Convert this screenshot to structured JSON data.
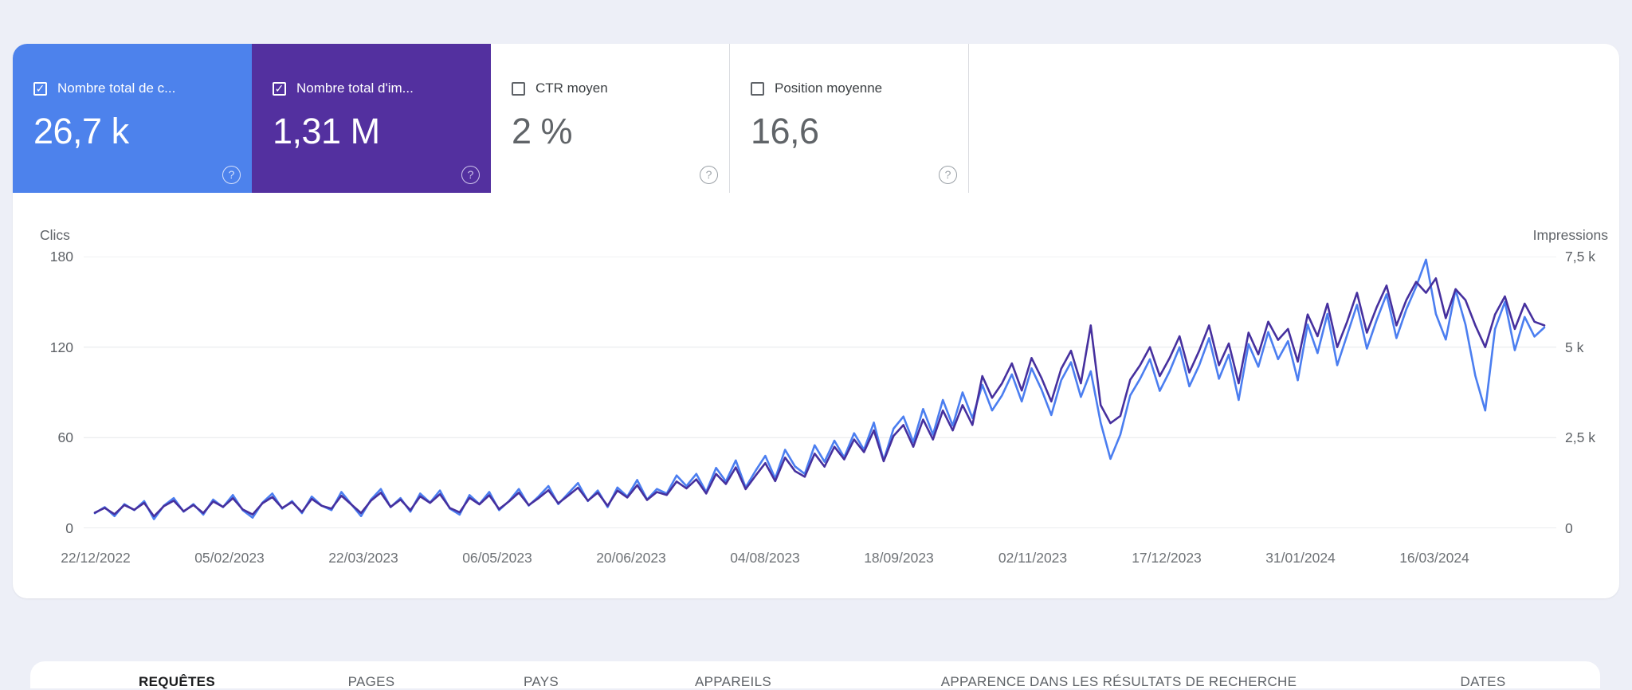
{
  "icons": {
    "help": "?",
    "check": "✓"
  },
  "colors": {
    "page_bg": "#edeff7",
    "clicks_accent": "#4d82ec",
    "impressions_accent": "#53309f",
    "clicks_line": "#4b7ef0",
    "impressions_line": "#46309e",
    "grid": "#e8eaed"
  },
  "cards": [
    {
      "label": "Nombre total de c...",
      "value": "26,7 k",
      "checked": true,
      "bg": "#4d82ec",
      "label_color": "#ffffff",
      "value_color": "#ffffff",
      "cb_color": "#ffffff",
      "help_color": "#d8e2fb"
    },
    {
      "label": "Nombre total d'im...",
      "value": "1,31 M",
      "checked": true,
      "bg": "#53309f",
      "label_color": "#ffffff",
      "value_color": "#ffffff",
      "cb_color": "#ffffff",
      "help_color": "#cfc5ec"
    },
    {
      "label": "CTR moyen",
      "value": "2 %",
      "checked": false,
      "bg": "#ffffff",
      "label_color": "#3c4043",
      "value_color": "#606468",
      "cb_color": "#5f6368",
      "help_color": "#9aa0a6"
    },
    {
      "label": "Position moyenne",
      "value": "16,6",
      "checked": false,
      "bg": "#ffffff",
      "label_color": "#3c4043",
      "value_color": "#606468",
      "cb_color": "#5f6368",
      "help_color": "#9aa0a6"
    }
  ],
  "chart_data": {
    "type": "line",
    "left_axis": {
      "title": "Clics",
      "ticks": [
        "180",
        "120",
        "60",
        "0"
      ],
      "max": 180
    },
    "right_axis": {
      "title": "Impressions",
      "ticks": [
        "7,5 k",
        "5 k",
        "2,5 k",
        "0"
      ],
      "max": 7500
    },
    "x_ticks": [
      "22/12/2022",
      "05/02/2023",
      "22/03/2023",
      "06/05/2023",
      "20/06/2023",
      "04/08/2023",
      "18/09/2023",
      "02/11/2023",
      "17/12/2023",
      "31/01/2024",
      "16/03/2024"
    ],
    "series": [
      {
        "name": "Clics",
        "axis": "left",
        "color": "#4b7ef0",
        "values": [
          10,
          14,
          8,
          16,
          12,
          18,
          6,
          15,
          20,
          11,
          16,
          9,
          19,
          14,
          22,
          12,
          7,
          17,
          23,
          13,
          18,
          10,
          21,
          15,
          12,
          24,
          16,
          8,
          19,
          26,
          14,
          20,
          11,
          23,
          17,
          25,
          13,
          9,
          22,
          16,
          24,
          12,
          18,
          26,
          15,
          21,
          28,
          16,
          23,
          30,
          18,
          25,
          14,
          27,
          21,
          32,
          19,
          26,
          23,
          35,
          28,
          36,
          24,
          40,
          31,
          45,
          27,
          38,
          48,
          33,
          52,
          41,
          36,
          55,
          44,
          58,
          47,
          63,
          52,
          70,
          45,
          66,
          74,
          57,
          79,
          62,
          85,
          68,
          90,
          73,
          95,
          78,
          88,
          102,
          84,
          106,
          92,
          75,
          98,
          110,
          87,
          104,
          70,
          46,
          62,
          88,
          99,
          112,
          91,
          104,
          120,
          94,
          108,
          126,
          99,
          115,
          85,
          122,
          107,
          130,
          112,
          124,
          98,
          135,
          116,
          142,
          108,
          128,
          148,
          119,
          138,
          155,
          126,
          145,
          160,
          178,
          142,
          125,
          158,
          135,
          101,
          78,
          132,
          150,
          118,
          140,
          127,
          133
        ]
      },
      {
        "name": "Impressions",
        "axis": "right",
        "color": "#46309e",
        "values": [
          430,
          560,
          390,
          640,
          510,
          700,
          330,
          610,
          760,
          470,
          640,
          420,
          740,
          590,
          830,
          520,
          380,
          690,
          860,
          560,
          720,
          450,
          810,
          620,
          540,
          900,
          660,
          420,
          760,
          980,
          590,
          790,
          500,
          880,
          700,
          940,
          560,
          440,
          840,
          660,
          910,
          530,
          740,
          980,
          640,
          830,
          1050,
          690,
          900,
          1120,
          760,
          980,
          620,
          1040,
          850,
          1190,
          780,
          1000,
          920,
          1290,
          1100,
          1350,
          960,
          1500,
          1220,
          1680,
          1080,
          1450,
          1800,
          1300,
          1950,
          1580,
          1420,
          2060,
          1700,
          2250,
          1900,
          2450,
          2100,
          2700,
          1850,
          2550,
          2850,
          2250,
          3000,
          2450,
          3250,
          2700,
          3400,
          2850,
          4200,
          3600,
          4000,
          4550,
          3800,
          4700,
          4150,
          3500,
          4400,
          4900,
          4000,
          5600,
          3400,
          2900,
          3100,
          4100,
          4500,
          5000,
          4200,
          4700,
          5300,
          4300,
          4900,
          5600,
          4500,
          5100,
          4000,
          5400,
          4800,
          5700,
          5200,
          5500,
          4600,
          5900,
          5300,
          6200,
          5000,
          5700,
          6500,
          5400,
          6100,
          6700,
          5600,
          6300,
          6800,
          6500,
          6900,
          5800,
          6600,
          6300,
          5600,
          5000,
          5900,
          6400,
          5500,
          6200,
          5700,
          5600
        ]
      }
    ]
  },
  "tabs": [
    {
      "label": "REQUÊTES",
      "active": true
    },
    {
      "label": "PAGES",
      "active": false
    },
    {
      "label": "PAYS",
      "active": false
    },
    {
      "label": "APPAREILS",
      "active": false
    },
    {
      "label": "APPARENCE DANS LES RÉSULTATS DE RECHERCHE",
      "active": false
    },
    {
      "label": "DATES",
      "active": false
    }
  ]
}
